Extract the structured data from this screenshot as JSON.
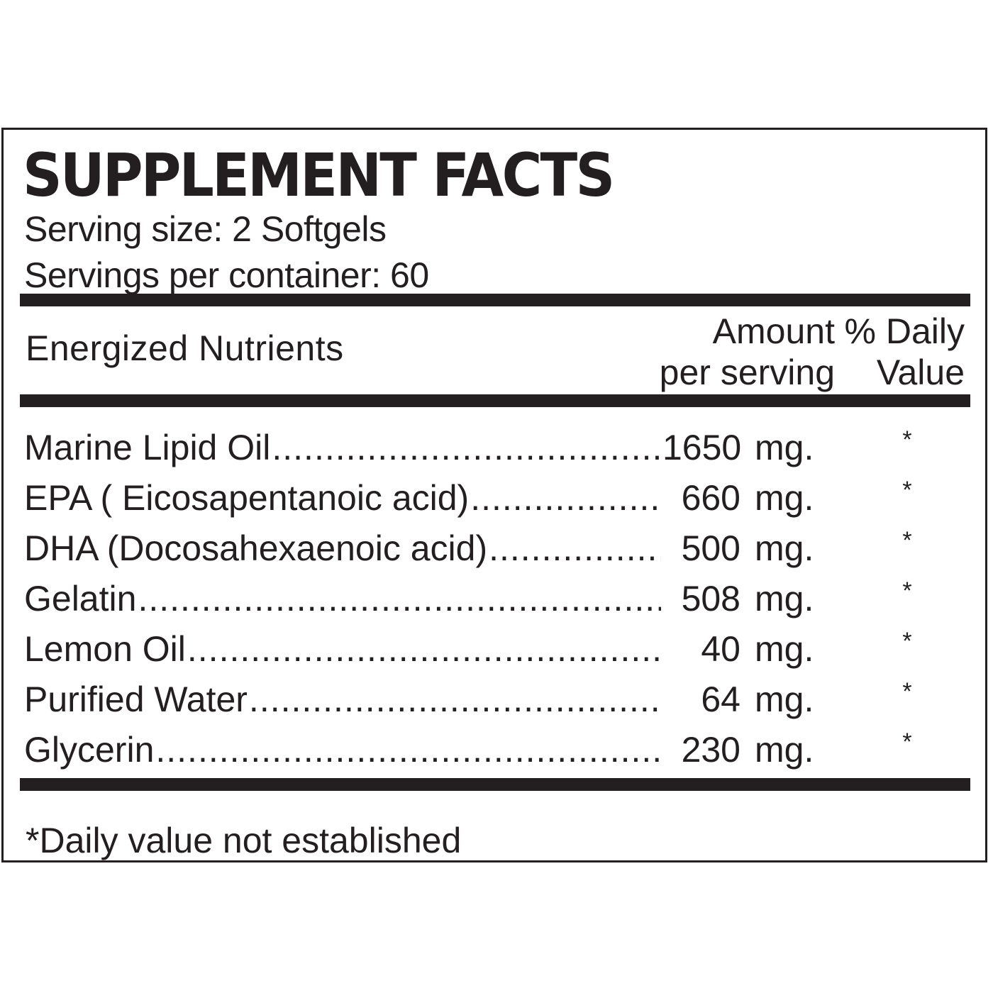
{
  "label": {
    "title": "SUPPLEMENT FACTS",
    "serving_size": "Serving size: 2 Softgels",
    "servings_per_container": "Servings per container: 60",
    "columns": {
      "nutrients": "Energized Nutrients",
      "amount_line1": "Amount",
      "amount_line2": "per serving",
      "dv_line1": "% Daily",
      "dv_line2": "Value"
    },
    "rows": [
      {
        "name": "Marine Lipid Oil",
        "amount": "1650",
        "unit": "mg.",
        "dv": "*"
      },
      {
        "name": "EPA ( Eicosapentanoic acid)",
        "amount": "660",
        "unit": "mg.",
        "dv": "*"
      },
      {
        "name": "DHA (Docosahexaenoic acid)",
        "amount": "500",
        "unit": "mg.",
        "dv": "*"
      },
      {
        "name": "Gelatin",
        "amount": "508",
        "unit": "mg.",
        "dv": "*"
      },
      {
        "name": "Lemon Oil",
        "amount": "40",
        "unit": "mg.",
        "dv": "*"
      },
      {
        "name": "Purified Water",
        "amount": "64",
        "unit": "mg.",
        "dv": "*"
      },
      {
        "name": "Glycerin",
        "amount": "230",
        "unit": "mg.",
        "dv": "*"
      }
    ],
    "footnote": "*Daily value not established"
  }
}
